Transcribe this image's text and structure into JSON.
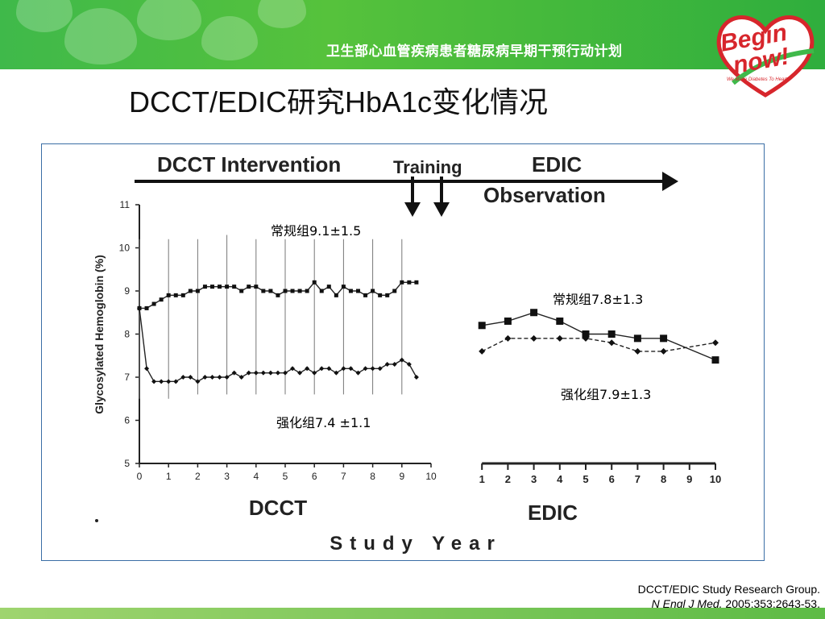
{
  "slide": {
    "banner_slogan": "卫生部心血管疾病患者糖尿病早期干预行动计划",
    "logo_text_1": "Begin",
    "logo_text_2": "now!",
    "logo_tagline": "We Make Diabetes To Heart",
    "title": "DCCT/EDIC研究HbA1c变化情况",
    "citation_line1": "DCCT/EDIC Study Research Group.",
    "citation_journal": "N Engl J Med.",
    "citation_rest": " 2005;353:2643-53.",
    "colors": {
      "banner": "#3fb94a",
      "chart_border": "#3a6ea5",
      "logo_red": "#d7262c"
    }
  },
  "chart_data": {
    "type": "line",
    "ylabel": "Glycosylated Hemoglobin (%)",
    "xlabel": "Study Year",
    "ylim": [
      5,
      11
    ],
    "yticks": [
      "5",
      "6",
      "7",
      "8",
      "9",
      "10",
      "11"
    ],
    "phase_labels": {
      "intervention": "DCCT Intervention",
      "training": "Training",
      "edic_1": "EDIC",
      "edic_2": "Observation",
      "dcct_axis": "DCCT",
      "edic_axis": "EDIC"
    },
    "dcct_ticks": [
      "0",
      "1",
      "2",
      "3",
      "4",
      "5",
      "6",
      "7",
      "8",
      "9",
      "10"
    ],
    "edic_ticks": [
      "1",
      "2",
      "3",
      "4",
      "5",
      "6",
      "7",
      "8",
      "9",
      "10"
    ],
    "annotations": {
      "conv_dcct": "常规组9.1±1.5",
      "int_dcct": "强化组7.4 ±1.1",
      "conv_edic": "常规组7.8±1.3",
      "int_edic": "强化组7.9±1.3"
    },
    "series": [
      {
        "phase": "DCCT",
        "group": "conventional",
        "x": [
          0,
          0.25,
          0.5,
          0.75,
          1.0,
          1.25,
          1.5,
          1.75,
          2.0,
          2.25,
          2.5,
          2.75,
          3.0,
          3.25,
          3.5,
          3.75,
          4.0,
          4.25,
          4.5,
          4.75,
          5.0,
          5.25,
          5.5,
          5.75,
          6.0,
          6.25,
          6.5,
          6.75,
          7.0,
          7.25,
          7.5,
          7.75,
          8.0,
          8.25,
          8.5,
          8.75,
          9.0,
          9.25,
          9.5
        ],
        "y": [
          8.6,
          8.6,
          8.7,
          8.8,
          8.9,
          8.9,
          8.9,
          9.0,
          9.0,
          9.1,
          9.1,
          9.1,
          9.1,
          9.1,
          9.0,
          9.1,
          9.1,
          9.0,
          9.0,
          8.9,
          9.0,
          9.0,
          9.0,
          9.0,
          9.2,
          9.0,
          9.1,
          8.9,
          9.1,
          9.0,
          9.0,
          8.9,
          9.0,
          8.9,
          8.9,
          9.0,
          9.2,
          9.2,
          9.2
        ]
      },
      {
        "phase": "DCCT",
        "group": "intensive",
        "x": [
          0,
          0.25,
          0.5,
          0.75,
          1.0,
          1.25,
          1.5,
          1.75,
          2.0,
          2.25,
          2.5,
          2.75,
          3.0,
          3.25,
          3.5,
          3.75,
          4.0,
          4.25,
          4.5,
          4.75,
          5.0,
          5.25,
          5.5,
          5.75,
          6.0,
          6.25,
          6.5,
          6.75,
          7.0,
          7.25,
          7.5,
          7.75,
          8.0,
          8.25,
          8.5,
          8.75,
          9.0,
          9.25,
          9.5
        ],
        "y": [
          8.6,
          7.2,
          6.9,
          6.9,
          6.9,
          6.9,
          7.0,
          7.0,
          6.9,
          7.0,
          7.0,
          7.0,
          7.0,
          7.1,
          7.0,
          7.1,
          7.1,
          7.1,
          7.1,
          7.1,
          7.1,
          7.2,
          7.1,
          7.2,
          7.1,
          7.2,
          7.2,
          7.1,
          7.2,
          7.2,
          7.1,
          7.2,
          7.2,
          7.2,
          7.3,
          7.3,
          7.4,
          7.3,
          7.0
        ]
      },
      {
        "phase": "EDIC",
        "group": "conventional",
        "x": [
          1,
          2,
          3,
          4,
          5,
          6,
          7,
          8,
          10
        ],
        "y": [
          8.2,
          8.3,
          8.5,
          8.3,
          8.0,
          8.0,
          7.9,
          7.9,
          7.4
        ]
      },
      {
        "phase": "EDIC",
        "group": "intensive",
        "x": [
          1,
          2,
          3,
          4,
          5,
          6,
          7,
          8,
          10
        ],
        "y": [
          7.6,
          7.9,
          7.9,
          7.9,
          7.9,
          7.8,
          7.6,
          7.6,
          7.8
        ]
      }
    ],
    "error_bars": {
      "x": [
        0,
        1,
        2,
        3,
        4,
        5,
        6,
        7,
        8,
        9
      ],
      "upper": [
        10.2,
        10.2,
        10.2,
        10.3,
        10.2,
        10.2,
        10.2,
        10.2,
        10.2,
        10.2
      ],
      "lower": [
        6.5,
        6.5,
        6.6,
        6.6,
        6.6,
        6.6,
        6.6,
        6.6,
        6.6,
        6.6
      ]
    }
  }
}
